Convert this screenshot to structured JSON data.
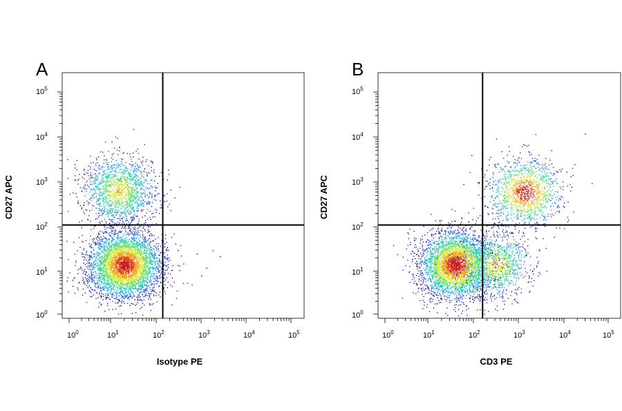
{
  "chart_data": [
    {
      "type": "scatter",
      "panel_letter": "A",
      "xlabel": "Isotype PE",
      "ylabel": "CD27 APC",
      "x_scale": "log",
      "y_scale": "log",
      "xlim": [
        1,
        100000
      ],
      "ylim": [
        1,
        100000
      ],
      "x_ticks": [
        {
          "base": "10",
          "exp": "0"
        },
        {
          "base": "10",
          "exp": "1"
        },
        {
          "base": "10",
          "exp": "2"
        },
        {
          "base": "10",
          "exp": "3"
        },
        {
          "base": "10",
          "exp": "4"
        },
        {
          "base": "10",
          "exp": "5"
        }
      ],
      "y_ticks": [
        {
          "base": "10",
          "exp": "0"
        },
        {
          "base": "10",
          "exp": "1"
        },
        {
          "base": "10",
          "exp": "2"
        },
        {
          "base": "10",
          "exp": "3"
        },
        {
          "base": "10",
          "exp": "4"
        },
        {
          "base": "10",
          "exp": "5"
        }
      ],
      "quadrant_gate": {
        "x": 140,
        "y": 110
      },
      "populations": [
        {
          "x": 20,
          "y": 14,
          "count": 4200,
          "core_density": "high"
        },
        {
          "x": 15,
          "y": 650,
          "count": 1500,
          "core_density": "medium"
        }
      ],
      "sparse_events": [
        {
          "x": 300,
          "y": 30
        },
        {
          "x": 800,
          "y": 25
        },
        {
          "x": 1800,
          "y": 30
        },
        {
          "x": 400,
          "y": 15
        },
        {
          "x": 1300,
          "y": 12
        },
        {
          "x": 2600,
          "y": 22
        },
        {
          "x": 1000,
          "y": 8
        }
      ],
      "grid": false,
      "legend": "none"
    },
    {
      "type": "scatter",
      "panel_letter": "B",
      "xlabel": "CD3 PE",
      "ylabel": "CD27 APC",
      "x_scale": "log",
      "y_scale": "log",
      "xlim": [
        1,
        100000
      ],
      "ylim": [
        1,
        100000
      ],
      "x_ticks": [
        {
          "base": "10",
          "exp": "0"
        },
        {
          "base": "10",
          "exp": "1"
        },
        {
          "base": "10",
          "exp": "2"
        },
        {
          "base": "10",
          "exp": "3"
        },
        {
          "base": "10",
          "exp": "4"
        },
        {
          "base": "10",
          "exp": "5"
        }
      ],
      "y_ticks": [
        {
          "base": "10",
          "exp": "0"
        },
        {
          "base": "10",
          "exp": "1"
        },
        {
          "base": "10",
          "exp": "2"
        },
        {
          "base": "10",
          "exp": "3"
        },
        {
          "base": "10",
          "exp": "4"
        },
        {
          "base": "10",
          "exp": "5"
        }
      ],
      "quadrant_gate": {
        "x": 160,
        "y": 110
      },
      "populations": [
        {
          "x": 40,
          "y": 14,
          "count": 3600,
          "core_density": "high"
        },
        {
          "x": 300,
          "y": 14,
          "count": 1100,
          "core_density": "medium"
        },
        {
          "x": 1400,
          "y": 600,
          "count": 1300,
          "core_density": "high"
        }
      ],
      "sparse_events": [
        {
          "x": 30000,
          "y": 12000
        },
        {
          "x": 5000,
          "y": 400
        },
        {
          "x": 6000,
          "y": 60
        },
        {
          "x": 150,
          "y": 2000
        },
        {
          "x": 90,
          "y": 4000
        },
        {
          "x": 60,
          "y": 900
        }
      ],
      "grid": false,
      "legend": "none"
    }
  ]
}
